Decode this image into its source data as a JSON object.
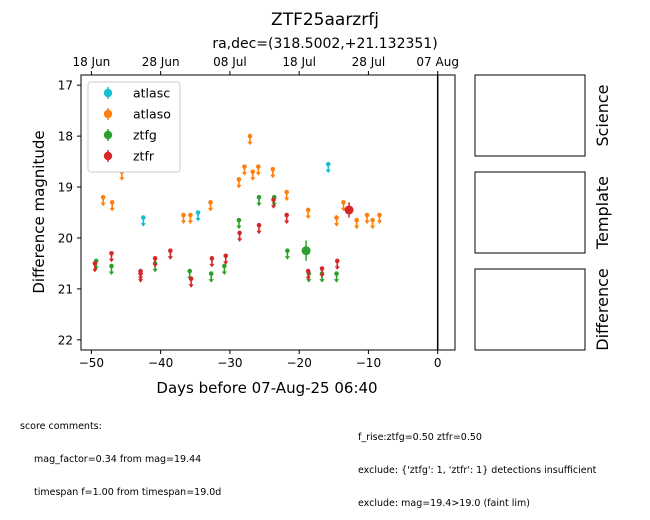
{
  "title": "ZTF25aarzrfj",
  "subtitle": "ra,dec=(318.5002,+21.132351)",
  "chart_data": {
    "type": "scatter",
    "xlabel": "Days before 07-Aug-25 06:40",
    "ylabel": "Difference magnitude",
    "xlim": [
      -51.5,
      2.5
    ],
    "ylim": [
      22.2,
      16.8
    ],
    "y_inverted": true,
    "xticks": [
      -50,
      -40,
      -30,
      -20,
      -10,
      0
    ],
    "yticks": [
      17,
      18,
      19,
      20,
      21,
      22
    ],
    "top_axis_ticks": [
      {
        "label": "18 Jun",
        "x": -50
      },
      {
        "label": "28 Jun",
        "x": -40
      },
      {
        "label": "08 Jul",
        "x": -30
      },
      {
        "label": "18 Jul",
        "x": -20
      },
      {
        "label": "28 Jul",
        "x": -10
      },
      {
        "label": "07 Aug",
        "x": 0
      }
    ],
    "vline_x": 0,
    "legend_position": "upper-left",
    "series": [
      {
        "name": "atlasc",
        "color": "#17becf",
        "upper_limits": [
          [
            -42.5,
            19.6
          ],
          [
            -34.6,
            19.5
          ],
          [
            -15.8,
            18.55
          ]
        ],
        "detections": []
      },
      {
        "name": "atlaso",
        "color": "#ff7f0e",
        "upper_limits": [
          [
            -48.3,
            19.2
          ],
          [
            -47.0,
            19.3
          ],
          [
            -45.6,
            18.7
          ],
          [
            -36.7,
            19.55
          ],
          [
            -35.7,
            19.55
          ],
          [
            -32.8,
            19.3
          ],
          [
            -28.7,
            18.85
          ],
          [
            -27.9,
            18.6
          ],
          [
            -27.1,
            18.0
          ],
          [
            -26.7,
            18.7
          ],
          [
            -25.9,
            18.6
          ],
          [
            -23.8,
            18.65
          ],
          [
            -21.8,
            19.1
          ],
          [
            -18.7,
            19.45
          ],
          [
            -14.6,
            19.6
          ],
          [
            -13.6,
            19.3
          ],
          [
            -11.7,
            19.65
          ],
          [
            -10.2,
            19.55
          ],
          [
            -9.4,
            19.65
          ],
          [
            -8.4,
            19.55
          ]
        ],
        "detections": []
      },
      {
        "name": "ztfg",
        "color": "#2ca02c",
        "upper_limits": [
          [
            -49.3,
            20.45
          ],
          [
            -47.1,
            20.55
          ],
          [
            -40.8,
            20.5
          ],
          [
            -35.8,
            20.65
          ],
          [
            -32.7,
            20.7
          ],
          [
            -30.8,
            20.55
          ],
          [
            -28.7,
            19.65
          ],
          [
            -25.8,
            19.2
          ],
          [
            -23.6,
            19.2
          ],
          [
            -21.7,
            20.25
          ],
          [
            -18.6,
            20.7
          ],
          [
            -16.7,
            20.7
          ],
          [
            -14.6,
            20.7
          ]
        ],
        "detections": [
          [
            -19.0,
            20.25,
            0.2
          ]
        ]
      },
      {
        "name": "ztfr",
        "color": "#d62728",
        "upper_limits": [
          [
            -49.5,
            20.5
          ],
          [
            -47.1,
            20.3
          ],
          [
            -42.9,
            20.65
          ],
          [
            -42.9,
            20.7
          ],
          [
            -40.8,
            20.4
          ],
          [
            -38.6,
            20.25
          ],
          [
            -35.6,
            20.8
          ],
          [
            -32.6,
            20.4
          ],
          [
            -30.6,
            20.35
          ],
          [
            -28.6,
            19.9
          ],
          [
            -25.8,
            19.75
          ],
          [
            -23.7,
            19.25
          ],
          [
            -21.8,
            19.55
          ],
          [
            -18.7,
            20.65
          ],
          [
            -16.7,
            20.6
          ],
          [
            -14.5,
            20.45
          ]
        ],
        "detections": [
          [
            -12.8,
            19.45,
            0.15
          ]
        ]
      }
    ]
  },
  "panels": [
    {
      "label": "Science"
    },
    {
      "label": "Template"
    },
    {
      "label": "Difference"
    }
  ],
  "comments": {
    "header": "score comments:",
    "left_lines": [
      "mag_factor=0.34 from mag=19.44",
      "timespan f=1.00 from timespan=19.0d"
    ],
    "right_lines": [
      "f_rise:ztfg=0.50 ztfr=0.50",
      "exclude: {'ztfg': 1, 'ztfr': 1} detections insufficient",
      "exclude: mag=19.4>19.0 (faint lim)"
    ]
  }
}
